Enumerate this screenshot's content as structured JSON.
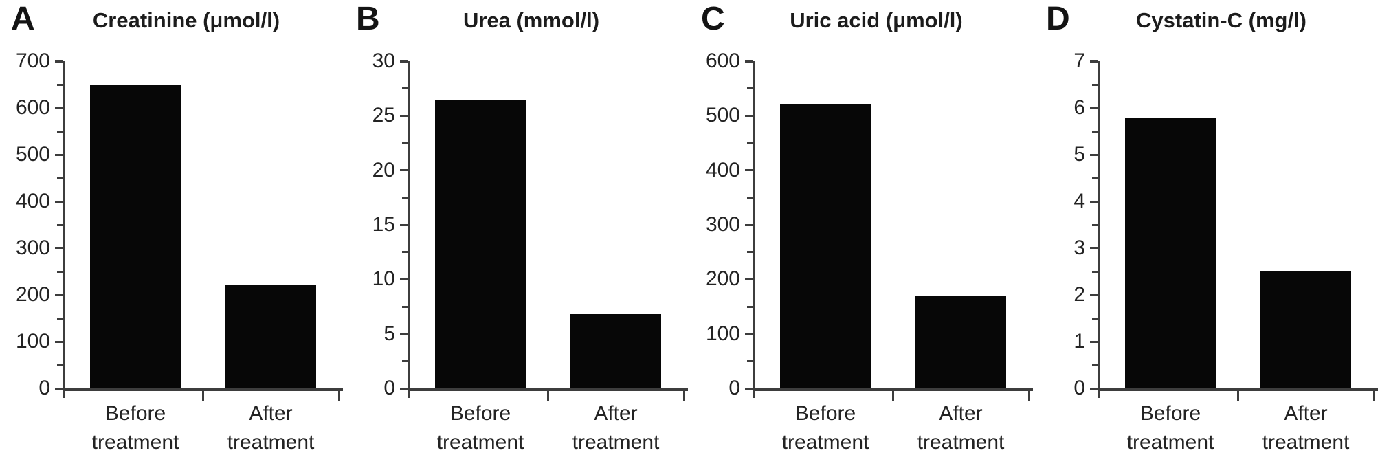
{
  "colors": {
    "bar": "#070707",
    "axis": "#3d3d3d",
    "text": "#232323",
    "background": "#ffffff"
  },
  "chart_data": [
    {
      "type": "bar",
      "panel_label": "A",
      "title": "Creatinine (μmol/l)",
      "categories": [
        "Before treatment",
        "After treatment"
      ],
      "values": [
        650,
        220
      ],
      "ylim": [
        0,
        700
      ],
      "ytick_step": 100,
      "yminor_step": 50,
      "grid": false,
      "legend": false
    },
    {
      "type": "bar",
      "panel_label": "B",
      "title": "Urea (mmol/l)",
      "categories": [
        "Before treatment",
        "After treatment"
      ],
      "values": [
        26.5,
        6.8
      ],
      "ylim": [
        0,
        30
      ],
      "ytick_step": 5,
      "yminor_step": 2.5,
      "grid": false,
      "legend": false
    },
    {
      "type": "bar",
      "panel_label": "C",
      "title": "Uric acid (μmol/l)",
      "categories": [
        "Before treatment",
        "After treatment"
      ],
      "values": [
        520,
        170
      ],
      "ylim": [
        0,
        600
      ],
      "ytick_step": 100,
      "yminor_step": 50,
      "grid": false,
      "legend": false
    },
    {
      "type": "bar",
      "panel_label": "D",
      "title": "Cystatin-C (mg/l)",
      "categories": [
        "Before treatment",
        "After treatment"
      ],
      "values": [
        5.8,
        2.5
      ],
      "ylim": [
        0,
        7
      ],
      "ytick_step": 1,
      "yminor_step": 0.5,
      "grid": false,
      "legend": false
    }
  ]
}
